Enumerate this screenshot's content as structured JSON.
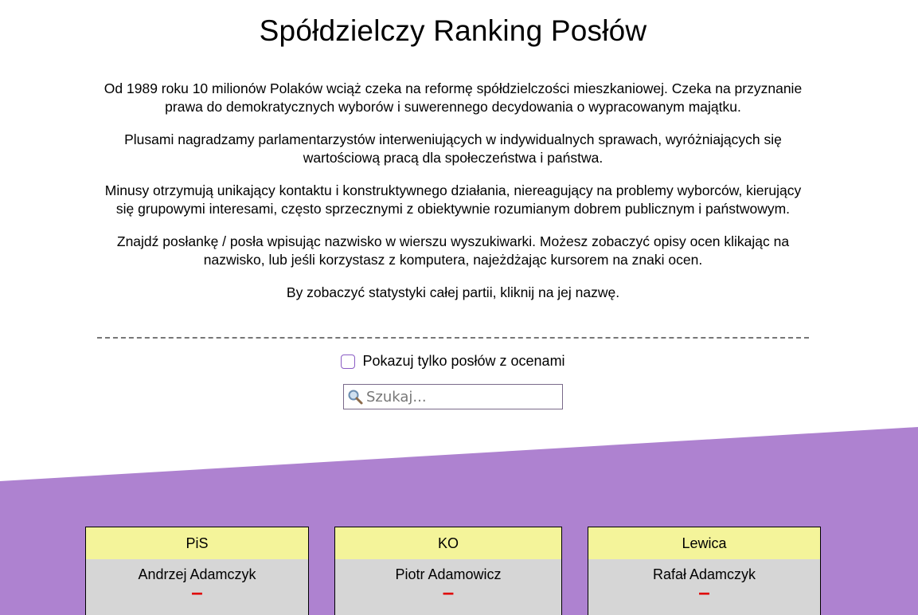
{
  "page": {
    "title": "Spółdzielczy Ranking Posłów",
    "intro": [
      "Od 1989 roku 10 milionów Polaków wciąż czeka na reformę spółdzielczości mieszkaniowej. Czeka na przyznanie prawa do demokratycznych wyborów i suwerennego decydowania o wypracowanym majątku.",
      "Plusami nagradzamy parlamentarzystów interweniujących w indywidualnych sprawach, wyróżniających się wartościową pracą dla społeczeństwa i państwa.",
      "Minusy otrzymują unikający kontaktu i konstruktywnego działania, niereagujący na problemy wyborców, kierujący się grupowymi interesami, często sprzecznymi z obiektywnie rozumianym dobrem publicznym i państwowym.",
      "Znajdź posłankę / posła wpisując nazwisko w wierszu wyszukiwarki. Możesz zobaczyć opisy ocen klikając na nazwisko, lub jeśli korzystasz z komputera, najeżdżając kursorem na znaki ocen.",
      "By zobaczyć statystyki całej partii, kliknij na jej nazwę."
    ]
  },
  "filter": {
    "checkbox_label": "Pokazuj tylko posłów z ocenami",
    "checked": false
  },
  "search": {
    "placeholder": "Szukaj...",
    "icon": "search-icon"
  },
  "colors": {
    "accent_purple": "#ae82d0",
    "party_header": "#f4f49a",
    "card_body": "#d6d6d6",
    "minus_red": "#e00000"
  },
  "cards": [
    {
      "party": "PiS",
      "name": "Andrzej Adamczyk",
      "score": "–"
    },
    {
      "party": "KO",
      "name": "Piotr Adamowicz",
      "score": "–"
    },
    {
      "party": "Lewica",
      "name": "Rafał Adamczyk",
      "score": "–"
    }
  ]
}
